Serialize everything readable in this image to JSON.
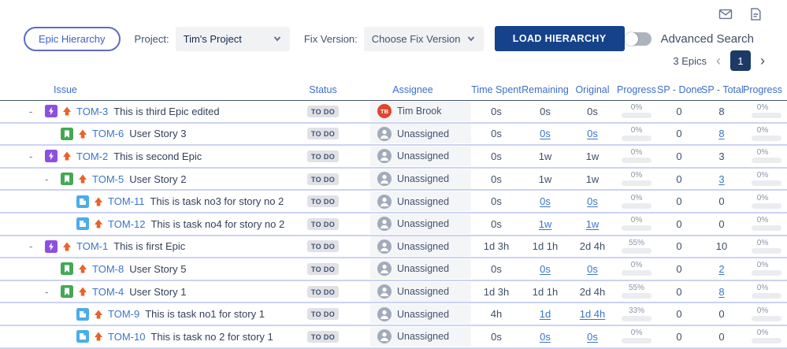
{
  "toolbar": {
    "epic_hierarchy_label": "Epic Hierarchy",
    "project_label": "Project:",
    "project_value": "Tim's Project",
    "fix_version_label": "Fix Version:",
    "fix_version_value": "Choose Fix Version",
    "load_button_label": "LOAD HIERARCHY",
    "advanced_search_label": "Advanced Search"
  },
  "pagination": {
    "count_label": "3 Epics",
    "prev_glyph": "‹",
    "page": "1",
    "next_glyph": "›"
  },
  "table": {
    "collapse_glyph": "-",
    "columns": [
      "Issue",
      "Status",
      "Assignee",
      "Time Spent",
      "Remaining",
      "Original",
      "Progress",
      "SP - Done",
      "SP - Total",
      "Progress"
    ],
    "rows": [
      {
        "depth": 0,
        "toggle": true,
        "type": "epic",
        "key": "TOM-3",
        "summary": "This is third Epic edited",
        "status": "TO DO",
        "assignee": {
          "initials": "TB",
          "name": "Tim Brook",
          "color": "#e0452e"
        },
        "time_spent": "0s",
        "remaining": {
          "text": "0s",
          "link": false
        },
        "original": {
          "text": "0s",
          "link": false
        },
        "progress_label": "0%",
        "progress_pct": 0,
        "sp_done": "0",
        "sp_total": {
          "text": "8",
          "link": false
        },
        "sp_progress_label": "0%",
        "sp_progress_pct": 0
      },
      {
        "depth": 1,
        "toggle": false,
        "type": "story",
        "key": "TOM-6",
        "summary": "User Story 3",
        "status": "TO DO",
        "assignee": {
          "initials": null,
          "name": "Unassigned",
          "color": null
        },
        "time_spent": "0s",
        "remaining": {
          "text": "0s",
          "link": true
        },
        "original": {
          "text": "0s",
          "link": true
        },
        "progress_label": "0%",
        "progress_pct": 0,
        "sp_done": "0",
        "sp_total": {
          "text": "8",
          "link": true
        },
        "sp_progress_label": "0%",
        "sp_progress_pct": 0
      },
      {
        "depth": 0,
        "toggle": true,
        "type": "epic",
        "key": "TOM-2",
        "summary": "This is second Epic",
        "status": "TO DO",
        "assignee": {
          "initials": null,
          "name": "Unassigned",
          "color": null
        },
        "time_spent": "0s",
        "remaining": {
          "text": "1w",
          "link": false
        },
        "original": {
          "text": "1w",
          "link": false
        },
        "progress_label": "0%",
        "progress_pct": 0,
        "sp_done": "0",
        "sp_total": {
          "text": "3",
          "link": false
        },
        "sp_progress_label": "0%",
        "sp_progress_pct": 0
      },
      {
        "depth": 1,
        "toggle": true,
        "type": "story",
        "key": "TOM-5",
        "summary": "User Story 2",
        "status": "TO DO",
        "assignee": {
          "initials": null,
          "name": "Unassigned",
          "color": null
        },
        "time_spent": "0s",
        "remaining": {
          "text": "1w",
          "link": false
        },
        "original": {
          "text": "1w",
          "link": false
        },
        "progress_label": "0%",
        "progress_pct": 0,
        "sp_done": "0",
        "sp_total": {
          "text": "3",
          "link": true
        },
        "sp_progress_label": "0%",
        "sp_progress_pct": 0
      },
      {
        "depth": 2,
        "toggle": false,
        "type": "task",
        "key": "TOM-11",
        "summary": "This is task no3 for story no 2",
        "status": "TO DO",
        "assignee": {
          "initials": null,
          "name": "Unassigned",
          "color": null
        },
        "time_spent": "0s",
        "remaining": {
          "text": "0s",
          "link": true
        },
        "original": {
          "text": "0s",
          "link": true
        },
        "progress_label": "0%",
        "progress_pct": 0,
        "sp_done": "0",
        "sp_total": {
          "text": "0",
          "link": false
        },
        "sp_progress_label": "0%",
        "sp_progress_pct": 0
      },
      {
        "depth": 2,
        "toggle": false,
        "type": "task",
        "key": "TOM-12",
        "summary": "This is task no4 for story no 2",
        "status": "TO DO",
        "assignee": {
          "initials": null,
          "name": "Unassigned",
          "color": null
        },
        "time_spent": "0s",
        "remaining": {
          "text": "1w",
          "link": true
        },
        "original": {
          "text": "1w",
          "link": true
        },
        "progress_label": "0%",
        "progress_pct": 0,
        "sp_done": "0",
        "sp_total": {
          "text": "0",
          "link": false
        },
        "sp_progress_label": "0%",
        "sp_progress_pct": 0
      },
      {
        "depth": 0,
        "toggle": true,
        "type": "epic",
        "key": "TOM-1",
        "summary": "This is first Epic",
        "status": "TO DO",
        "assignee": {
          "initials": null,
          "name": "Unassigned",
          "color": null
        },
        "time_spent": "1d 3h",
        "remaining": {
          "text": "1d 1h",
          "link": false
        },
        "original": {
          "text": "2d 4h",
          "link": false
        },
        "progress_label": "55%",
        "progress_pct": 55,
        "sp_done": "0",
        "sp_total": {
          "text": "10",
          "link": false
        },
        "sp_progress_label": "0%",
        "sp_progress_pct": 0
      },
      {
        "depth": 1,
        "toggle": false,
        "type": "story",
        "key": "TOM-8",
        "summary": "User Story 5",
        "status": "TO DO",
        "assignee": {
          "initials": null,
          "name": "Unassigned",
          "color": null
        },
        "time_spent": "0s",
        "remaining": {
          "text": "0s",
          "link": true
        },
        "original": {
          "text": "0s",
          "link": true
        },
        "progress_label": "0%",
        "progress_pct": 0,
        "sp_done": "0",
        "sp_total": {
          "text": "2",
          "link": true
        },
        "sp_progress_label": "0%",
        "sp_progress_pct": 0
      },
      {
        "depth": 1,
        "toggle": true,
        "type": "story",
        "key": "TOM-4",
        "summary": "User Story 1",
        "status": "TO DO",
        "assignee": {
          "initials": null,
          "name": "Unassigned",
          "color": null
        },
        "time_spent": "1d 3h",
        "remaining": {
          "text": "1d 1h",
          "link": false
        },
        "original": {
          "text": "2d 4h",
          "link": false
        },
        "progress_label": "55%",
        "progress_pct": 55,
        "sp_done": "0",
        "sp_total": {
          "text": "8",
          "link": true
        },
        "sp_progress_label": "0%",
        "sp_progress_pct": 0
      },
      {
        "depth": 2,
        "toggle": false,
        "type": "task",
        "key": "TOM-9",
        "summary": "This is task no1 for story 1",
        "status": "TO DO",
        "assignee": {
          "initials": null,
          "name": "Unassigned",
          "color": null
        },
        "time_spent": "4h",
        "remaining": {
          "text": "1d",
          "link": true
        },
        "original": {
          "text": "1d 4h",
          "link": true
        },
        "progress_label": "33%",
        "progress_pct": 33,
        "sp_done": "0",
        "sp_total": {
          "text": "0",
          "link": false
        },
        "sp_progress_label": "0%",
        "sp_progress_pct": 0
      },
      {
        "depth": 2,
        "toggle": false,
        "type": "task",
        "key": "TOM-10",
        "summary": "This is task no 2 for story 1",
        "status": "TO DO",
        "assignee": {
          "initials": null,
          "name": "Unassigned",
          "color": null
        },
        "time_spent": "0s",
        "remaining": {
          "text": "0s",
          "link": true
        },
        "original": {
          "text": "0s",
          "link": true
        },
        "progress_label": "0%",
        "progress_pct": 0,
        "sp_done": "0",
        "sp_total": {
          "text": "0",
          "link": false
        },
        "sp_progress_label": "0%",
        "sp_progress_pct": 0
      }
    ]
  },
  "colors": {
    "accent_link": "#3b74cc",
    "header_text": "#3b6fc6",
    "epic_icon": "#8d4fe0",
    "story_icon": "#44a854",
    "task_icon": "#4badea",
    "priority_arrow": "#e8632c",
    "load_button": "#16428c",
    "status_badge_bg": "#dfe1e6",
    "status_badge_text": "#42526e",
    "progress_fill": "#2684ff",
    "avatar_tim_brook": "#e0452e",
    "page_box": "#1d3a66"
  }
}
